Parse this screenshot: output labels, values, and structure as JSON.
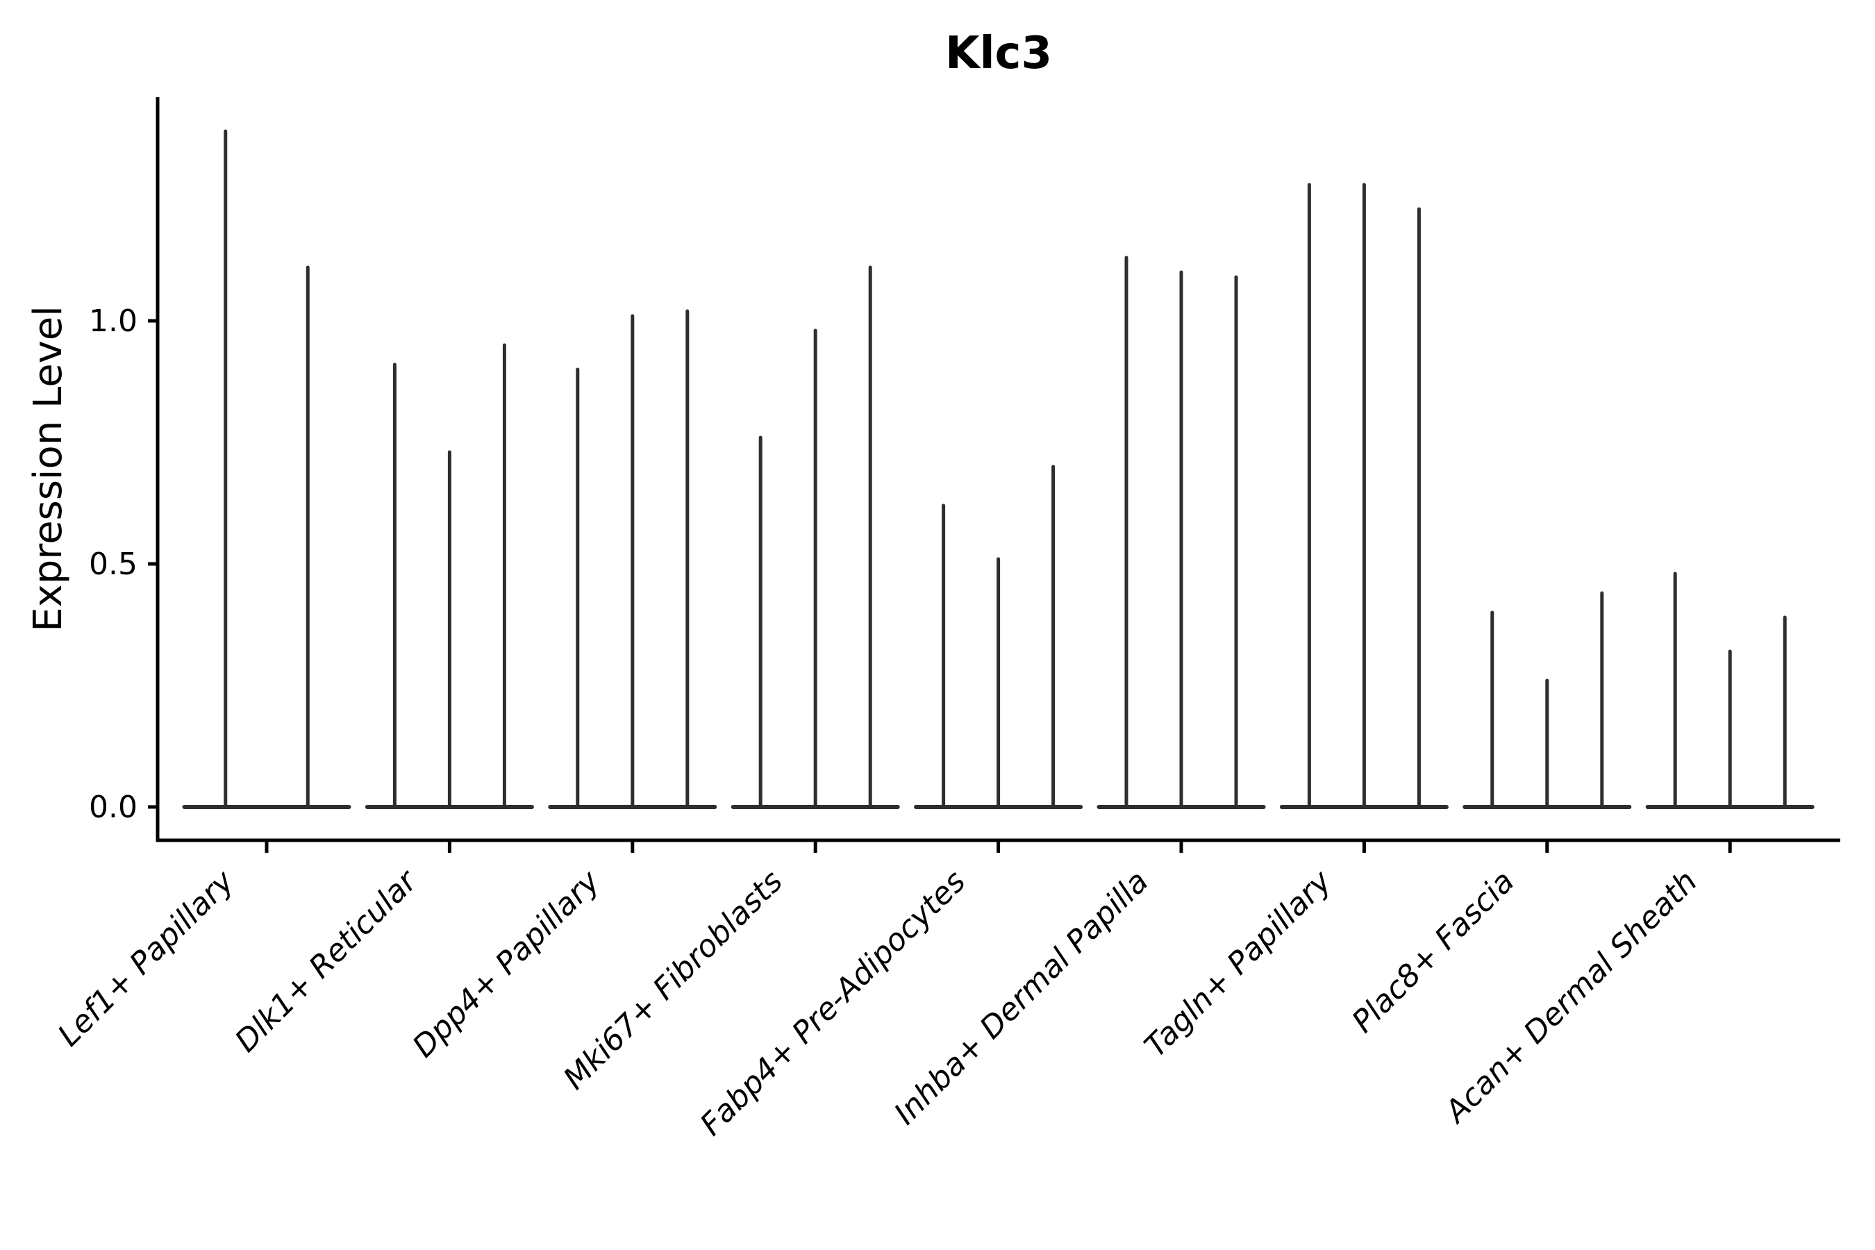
{
  "figure": {
    "background": "#ffffff"
  },
  "chart_data": {
    "type": "violin",
    "title": "Klc3",
    "ylabel": "Expression Level",
    "xlabel": "",
    "ylim": [
      0,
      1.46
    ],
    "yticks": [
      0,
      0.5,
      1.0
    ],
    "ytick_labels": [
      "0.0",
      "0.5",
      "1.0"
    ],
    "x_tick_rotation_deg": 45,
    "grid": false,
    "legend_position": "none",
    "categories": [
      "Lef1+ Papillary",
      "Dlk1+ Reticular",
      "Dpp4+ Papillary",
      "Mki67+ Fibroblasts",
      "Fabp4+ Pre-Adipocytes",
      "Inhba+ Dermal Papilla",
      "Tagln+ Papillary",
      "Plac8+ Fascia",
      "Acan+ Dermal Sheath"
    ],
    "series": [
      {
        "category": "Lef1+ Papillary",
        "violin_max_expression": [
          1.39,
          1.11
        ]
      },
      {
        "category": "Dlk1+ Reticular",
        "violin_max_expression": [
          0.91,
          0.73,
          0.95
        ]
      },
      {
        "category": "Dpp4+ Papillary",
        "violin_max_expression": [
          0.9,
          1.01,
          1.02
        ]
      },
      {
        "category": "Mki67+ Fibroblasts",
        "violin_max_expression": [
          0.76,
          0.98,
          1.11
        ]
      },
      {
        "category": "Fabp4+ Pre-Adipocytes",
        "violin_max_expression": [
          0.62,
          0.51,
          0.7
        ]
      },
      {
        "category": "Inhba+ Dermal Papilla",
        "violin_max_expression": [
          1.13,
          1.1,
          1.09
        ]
      },
      {
        "category": "Tagln+ Papillary",
        "violin_max_expression": [
          1.28,
          1.28,
          1.23
        ]
      },
      {
        "category": "Plac8+ Fascia",
        "violin_max_expression": [
          0.4,
          0.26,
          0.44
        ]
      },
      {
        "category": "Acan+ Dermal Sheath",
        "violin_max_expression": [
          0.48,
          0.32,
          0.39
        ]
      }
    ],
    "colors": {
      "violin_outline": "#2e2e2e",
      "axis": "#000000",
      "text": "#000000",
      "background": "#ffffff"
    }
  }
}
